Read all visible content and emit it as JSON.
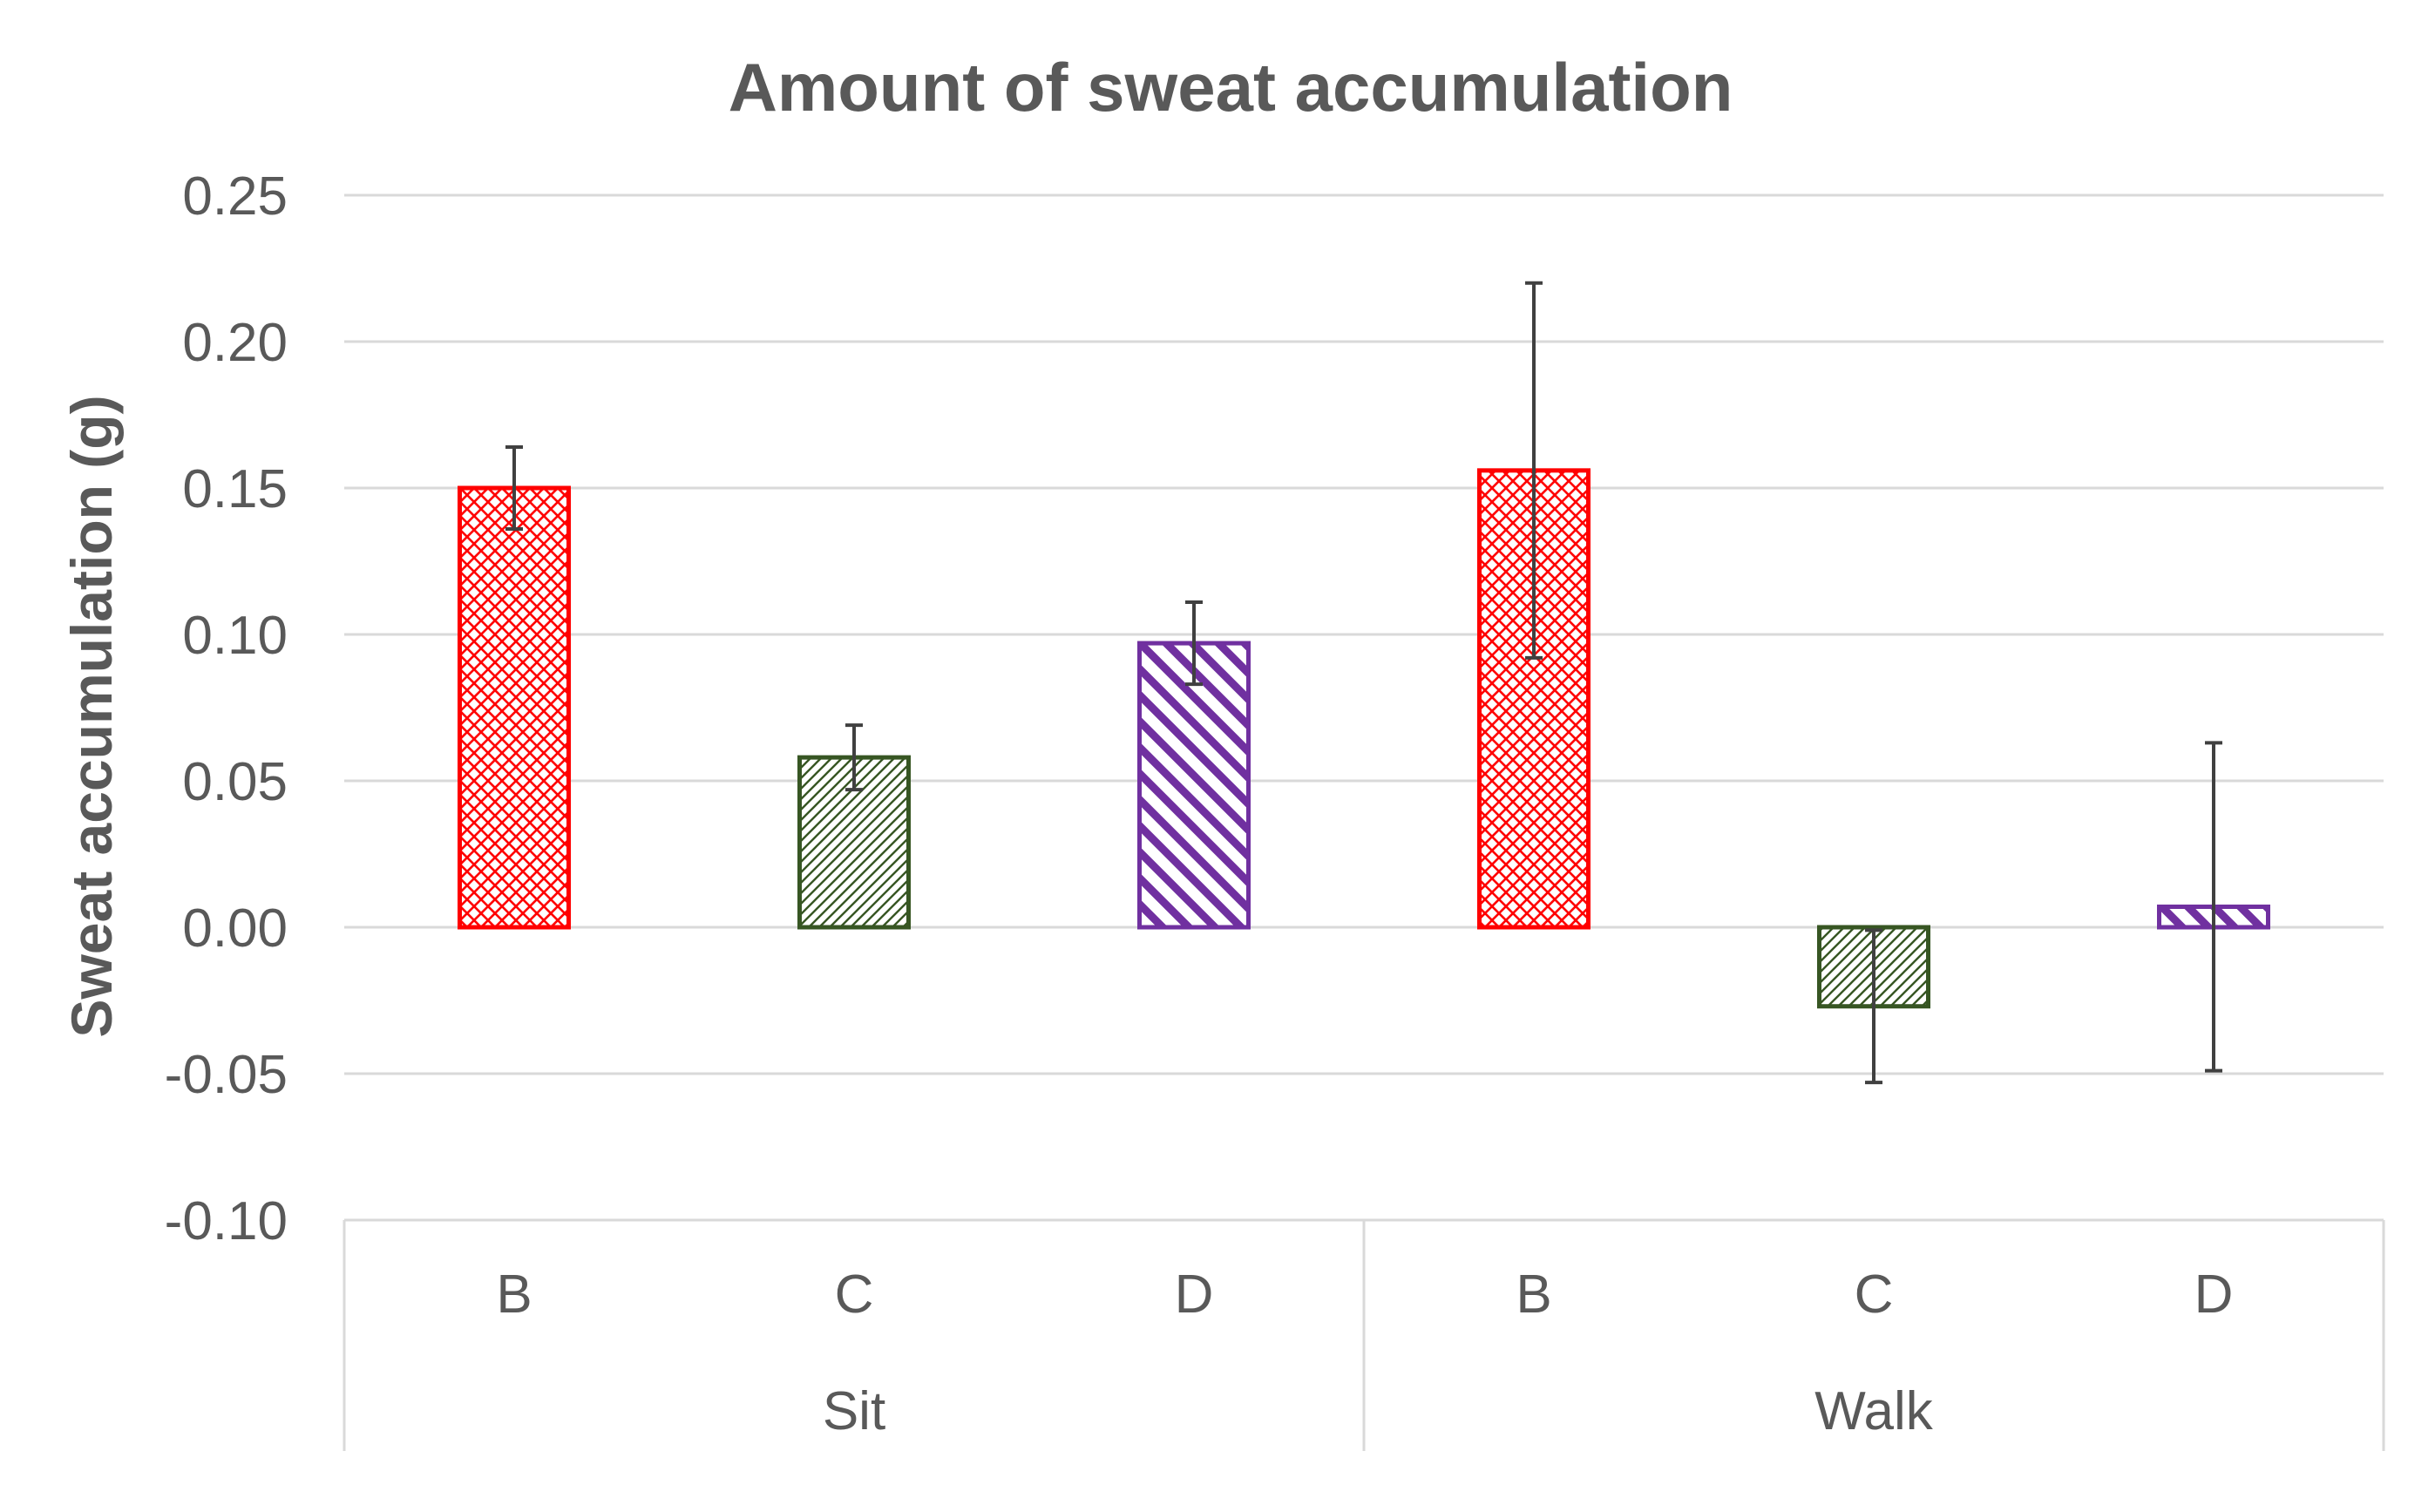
{
  "chart_data": {
    "type": "bar",
    "title": "Amount  of sweat accumulation",
    "xlabel": "",
    "ylabel": "Sweat accumulation (g)",
    "ylim": [
      -0.1,
      0.25
    ],
    "yticks": [
      "0.25",
      "0.20",
      "0.15",
      "0.10",
      "0.05",
      "0.00",
      "-0.05",
      "-0.10"
    ],
    "ytick_values": [
      0.25,
      0.2,
      0.15,
      0.1,
      0.05,
      0.0,
      -0.05,
      -0.1
    ],
    "groups": [
      {
        "name": "Sit",
        "categories": [
          "B",
          "C",
          "D"
        ]
      },
      {
        "name": "Walk",
        "categories": [
          "B",
          "C",
          "D"
        ]
      }
    ],
    "bars": [
      {
        "group": "Sit",
        "category": "B",
        "value": 0.15,
        "error": 0.014,
        "color": "#ff0000",
        "pattern": "crosshatch"
      },
      {
        "group": "Sit",
        "category": "C",
        "value": 0.058,
        "error": 0.011,
        "color": "#375623",
        "pattern": "diagonal-fine"
      },
      {
        "group": "Sit",
        "category": "D",
        "value": 0.097,
        "error": 0.014,
        "color": "#7030a0",
        "pattern": "diagonal-wide"
      },
      {
        "group": "Walk",
        "category": "B",
        "value": 0.156,
        "error": 0.064,
        "color": "#ff0000",
        "pattern": "crosshatch"
      },
      {
        "group": "Walk",
        "category": "C",
        "value": -0.027,
        "error": 0.026,
        "color": "#375623",
        "pattern": "diagonal-fine"
      },
      {
        "group": "Walk",
        "category": "D",
        "value": 0.007,
        "error": 0.056,
        "color": "#7030a0",
        "pattern": "diagonal-wide"
      }
    ],
    "grid": true,
    "legend": "none"
  }
}
